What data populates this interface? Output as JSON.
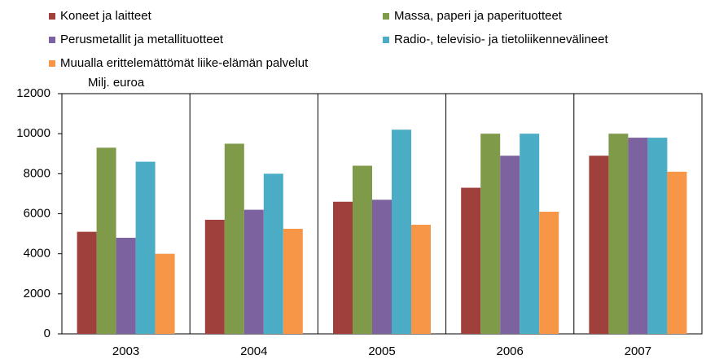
{
  "chart_data": {
    "type": "bar",
    "y_label": "Milj. euroa",
    "categories": [
      "2003",
      "2004",
      "2005",
      "2006",
      "2007"
    ],
    "series": [
      {
        "name": "Koneet ja laitteet",
        "color": "#a0403c",
        "values": [
          5100,
          5700,
          6600,
          7300,
          8900
        ]
      },
      {
        "name": "Massa, paperi ja paperituotteet",
        "color": "#7f9a48",
        "values": [
          9300,
          9500,
          8400,
          10000,
          10000
        ]
      },
      {
        "name": "Perusmetallit ja metallituotteet",
        "color": "#7d62a0",
        "values": [
          4800,
          6200,
          6700,
          8900,
          9800
        ]
      },
      {
        "name": "Radio-, televisio- ja tietoliikennevälineet",
        "color": "#4bacc6",
        "values": [
          8600,
          8000,
          10200,
          10000,
          9800
        ]
      },
      {
        "name": "Muualla erittelemättömät liike-elämän palvelut",
        "color": "#f79646",
        "values": [
          4000,
          5250,
          5450,
          6100,
          8100
        ]
      }
    ],
    "ylim": [
      0,
      12000
    ],
    "yticks": [
      0,
      2000,
      4000,
      6000,
      8000,
      10000,
      12000
    ],
    "grid": true,
    "legend": "top"
  }
}
